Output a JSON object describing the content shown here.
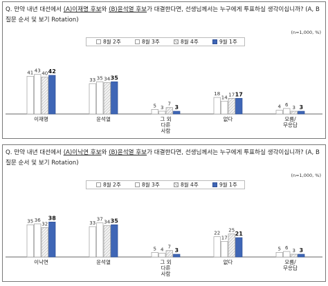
{
  "legend_title": "",
  "chart_data": [
    {
      "type": "bar",
      "question": {
        "prefix": "Q. 만약 내년 대선에서 ",
        "option_a": "(A)이재명 후보",
        "middle": "와 ",
        "option_b": "(B)윤석열 후보",
        "suffix": "가 대결한다면, 선생님께서는 누구에게 투표하실 생각이십니까? (A, B 질문 순서 및 보기 Rotation)"
      },
      "unit": "(n=1,000, %)",
      "categories": [
        [
          "이재명"
        ],
        [
          "윤석열"
        ],
        [
          "그 외",
          "다른",
          "사람"
        ],
        [
          "없다"
        ],
        [
          "모름/",
          "무응답"
        ]
      ],
      "series": [
        {
          "name": "8월 2주",
          "values": [
            41,
            33,
            5,
            18,
            4
          ]
        },
        {
          "name": "8월 3주",
          "values": [
            43,
            35,
            3,
            14,
            6
          ]
        },
        {
          "name": "8월 4주",
          "values": [
            40,
            34,
            7,
            17,
            3
          ]
        },
        {
          "name": "9월 1주",
          "values": [
            42,
            35,
            3,
            17,
            3
          ]
        }
      ],
      "ylim": [
        0,
        60
      ],
      "grid": false,
      "legend_position": "top-center"
    },
    {
      "type": "bar",
      "question": {
        "prefix": "Q. 만약 내년 대선에서 ",
        "option_a": "(A)이낙연 후보",
        "middle": "와 ",
        "option_b": "(B)윤석열 후보",
        "suffix": "가 대결한다면, 선생님께서는 누구에게 투표하실 생각이십니까? (A, B 질문 순서 및 보기 Rotation)"
      },
      "unit": "(n=1,000, %)",
      "categories": [
        [
          "이낙연"
        ],
        [
          "윤석열"
        ],
        [
          "그 외",
          "다른",
          "사람"
        ],
        [
          "없다"
        ],
        [
          "모름/",
          "무응답"
        ]
      ],
      "series": [
        {
          "name": "8월 2주",
          "values": [
            35,
            33,
            5,
            22,
            5
          ]
        },
        {
          "name": "8월 3주",
          "values": [
            36,
            37,
            4,
            17,
            6
          ]
        },
        {
          "name": "8월 4주",
          "values": [
            32,
            34,
            7,
            25,
            3
          ]
        },
        {
          "name": "9월 1주",
          "values": [
            38,
            35,
            3,
            21,
            3
          ]
        }
      ],
      "ylim": [
        0,
        60
      ],
      "grid": false,
      "legend_position": "top-center"
    }
  ],
  "series_style": [
    {
      "fill": "#ffffff",
      "stroke": "#9a9a9a",
      "pattern": "none",
      "label_color": "#333333",
      "label_weight": "normal"
    },
    {
      "fill": "#ffffff",
      "stroke": "#9a9a9a",
      "pattern": "none",
      "label_color": "#333333",
      "label_weight": "normal"
    },
    {
      "fill": "#eeeeee",
      "stroke": "#9a9a9a",
      "pattern": "diagonal",
      "label_color": "#333333",
      "label_weight": "normal"
    },
    {
      "fill": "#3f66b6",
      "stroke": "#2e4f95",
      "pattern": "none",
      "label_color": "#111111",
      "label_weight": "bold"
    }
  ]
}
